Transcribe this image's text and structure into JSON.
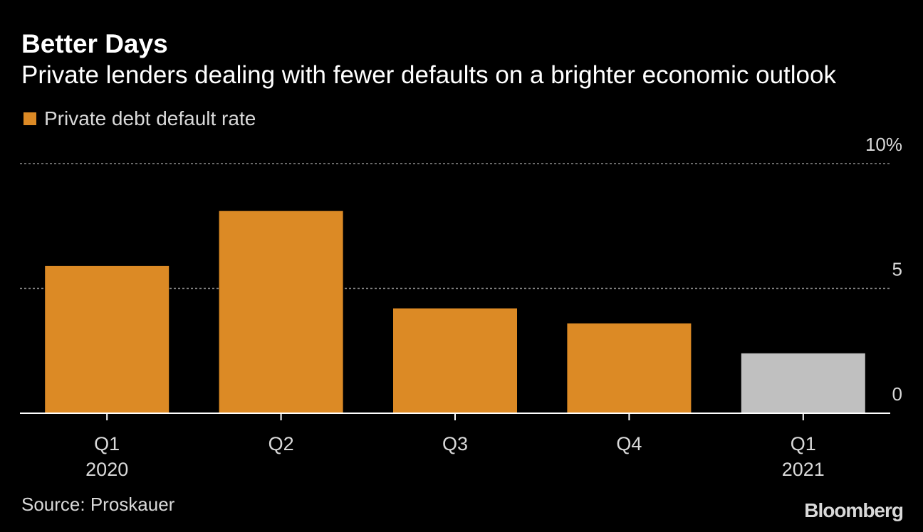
{
  "chart_data": {
    "type": "bar",
    "title": "Better Days",
    "subtitle": "Private lenders dealing with fewer defaults on a brighter economic outlook",
    "legend": {
      "label": "Private debt default rate",
      "placement": "top-left"
    },
    "categories": [
      {
        "label": "Q1",
        "sublabel": "2020"
      },
      {
        "label": "Q2",
        "sublabel": ""
      },
      {
        "label": "Q3",
        "sublabel": ""
      },
      {
        "label": "Q4",
        "sublabel": ""
      },
      {
        "label": "Q1",
        "sublabel": "2021"
      }
    ],
    "series": [
      {
        "name": "Private debt default rate",
        "values": [
          5.9,
          8.1,
          4.2,
          3.6,
          2.4
        ],
        "colors": [
          "#dc8a25",
          "#dc8a25",
          "#dc8a25",
          "#dc8a25",
          "#c0c0c0"
        ]
      }
    ],
    "yaxis": {
      "min": 0,
      "max": 10,
      "ticks": [
        {
          "value": 0,
          "label": "0"
        },
        {
          "value": 5,
          "label": "5"
        },
        {
          "value": 10,
          "label": "10%"
        }
      ],
      "position": "right",
      "gridlines": "dotted"
    },
    "xlabel": "",
    "ylabel": ""
  },
  "source": "Source: Proskauer",
  "brand": "Bloomberg",
  "colors": {
    "background": "#000000",
    "accent": "#dc8a25",
    "highlight": "#c0c0c0",
    "text": "#ffffff",
    "muted_text": "#d9d9d9",
    "gridline": "#8c8c8c"
  }
}
